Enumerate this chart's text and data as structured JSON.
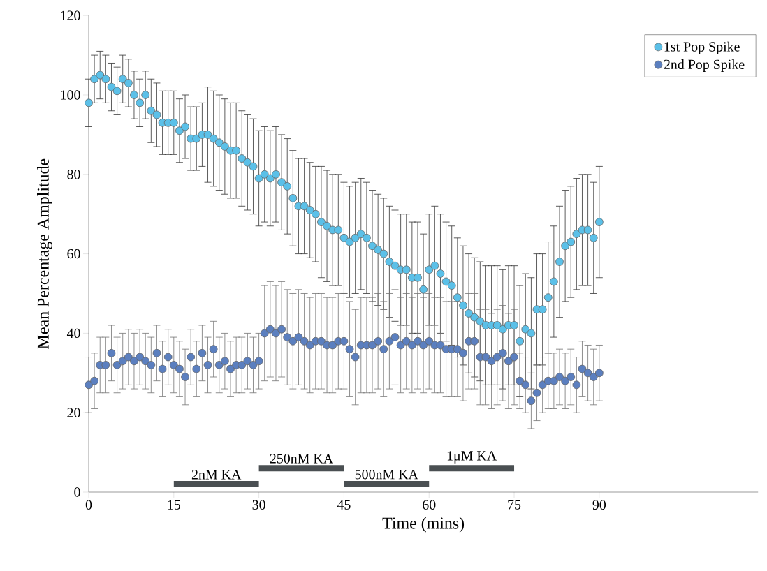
{
  "chart_data": {
    "type": "scatter",
    "xlabel": "Time (mins)",
    "ylabel": "Mean Percentage Amplitude",
    "x": [
      0,
      1,
      2,
      3,
      4,
      5,
      6,
      7,
      8,
      9,
      10,
      11,
      12,
      13,
      14,
      15,
      16,
      17,
      18,
      19,
      20,
      21,
      22,
      23,
      24,
      25,
      26,
      27,
      28,
      29,
      30,
      31,
      32,
      33,
      34,
      35,
      36,
      37,
      38,
      39,
      40,
      41,
      42,
      43,
      44,
      45,
      46,
      47,
      48,
      49,
      50,
      51,
      52,
      53,
      54,
      55,
      56,
      57,
      58,
      59,
      60,
      61,
      62,
      63,
      64,
      65,
      66,
      67,
      68,
      69,
      70,
      71,
      72,
      73,
      74,
      75,
      76,
      77,
      78,
      79,
      80,
      81,
      82,
      83,
      84,
      85,
      86,
      87,
      88,
      89,
      90
    ],
    "series": [
      {
        "name": "1st Pop Spike",
        "color": "#5bc0e8",
        "marker": "circle",
        "values": [
          98,
          104,
          105,
          104,
          102,
          101,
          104,
          103,
          100,
          98,
          100,
          96,
          95,
          93,
          93,
          93,
          91,
          92,
          89,
          89,
          90,
          90,
          89,
          88,
          87,
          86,
          86,
          84,
          83,
          82,
          79,
          80,
          79,
          80,
          78,
          77,
          74,
          72,
          72,
          71,
          70,
          68,
          67,
          66,
          66,
          64,
          63,
          64,
          65,
          64,
          62,
          61,
          60,
          58,
          57,
          56,
          56,
          54,
          54,
          51,
          56,
          57,
          55,
          53,
          52,
          49,
          47,
          45,
          44,
          43,
          42,
          42,
          42,
          41,
          42,
          42,
          38,
          41,
          40,
          46,
          46,
          49,
          53,
          58,
          62,
          63,
          65,
          66,
          66,
          64,
          68
        ],
        "errors": [
          6,
          6,
          6,
          6,
          6,
          6,
          6,
          6,
          6,
          6,
          6,
          8,
          8,
          8,
          8,
          8,
          8,
          8,
          8,
          8,
          8,
          12,
          12,
          12,
          12,
          12,
          12,
          12,
          12,
          12,
          12,
          12,
          12,
          12,
          12,
          12,
          12,
          12,
          12,
          12,
          12,
          14,
          14,
          14,
          14,
          14,
          14,
          14,
          14,
          14,
          14,
          14,
          14,
          14,
          14,
          14,
          14,
          14,
          14,
          14,
          14,
          15,
          15,
          15,
          15,
          15,
          15,
          15,
          15,
          15,
          15,
          15,
          15,
          15,
          15,
          15,
          14,
          14,
          14,
          14,
          14,
          14,
          14,
          14,
          14,
          14,
          14,
          14,
          14,
          14,
          14
        ]
      },
      {
        "name": "2nd Pop Spike",
        "color": "#5b7fbf",
        "marker": "circle",
        "values": [
          27,
          28,
          32,
          32,
          35,
          32,
          33,
          34,
          33,
          34,
          33,
          32,
          35,
          31,
          34,
          32,
          31,
          29,
          34,
          31,
          35,
          32,
          36,
          32,
          33,
          31,
          32,
          32,
          33,
          32,
          33,
          40,
          41,
          40,
          41,
          39,
          38,
          39,
          38,
          37,
          38,
          38,
          37,
          37,
          38,
          38,
          36,
          34,
          37,
          37,
          37,
          38,
          36,
          38,
          39,
          37,
          38,
          37,
          38,
          37,
          38,
          37,
          37,
          36,
          36,
          36,
          35,
          38,
          38,
          34,
          34,
          33,
          34,
          35,
          33,
          34,
          28,
          27,
          23,
          25,
          27,
          28,
          28,
          29,
          28,
          29,
          27,
          31,
          30,
          29,
          30
        ],
        "errors": [
          7,
          7,
          7,
          7,
          7,
          7,
          7,
          7,
          7,
          7,
          7,
          7,
          7,
          7,
          7,
          7,
          7,
          7,
          7,
          7,
          7,
          7,
          7,
          7,
          7,
          7,
          7,
          7,
          7,
          7,
          7,
          12,
          12,
          12,
          12,
          12,
          12,
          12,
          12,
          12,
          12,
          12,
          12,
          12,
          12,
          12,
          12,
          12,
          12,
          12,
          12,
          12,
          12,
          12,
          12,
          12,
          12,
          12,
          12,
          12,
          12,
          12,
          12,
          12,
          12,
          12,
          12,
          12,
          12,
          12,
          12,
          12,
          12,
          12,
          12,
          12,
          7,
          7,
          7,
          7,
          7,
          7,
          7,
          7,
          7,
          7,
          7,
          7,
          7,
          7,
          7
        ]
      },
      {
        "type": "line",
        "color": "#4a4f52",
        "marker": "none",
        "x": [
          15,
          30
        ],
        "values": [
          2,
          2
        ]
      },
      {
        "type": "line",
        "color": "#4a4f52",
        "marker": "none",
        "x": [
          30,
          45
        ],
        "values": [
          6,
          6
        ]
      },
      {
        "type": "line",
        "color": "#4a4f52",
        "marker": "none",
        "x": [
          45,
          60
        ],
        "values": [
          2,
          2
        ]
      },
      {
        "type": "line",
        "color": "#4a4f52",
        "marker": "none",
        "x": [
          60,
          75
        ],
        "values": [
          6,
          6
        ]
      }
    ],
    "xlim": [
      0,
      118
    ],
    "ylim": [
      0,
      120
    ],
    "xticks": [
      0,
      15,
      30,
      45,
      60,
      75,
      90
    ],
    "yticks": [
      0,
      20,
      40,
      60,
      80,
      100,
      120
    ],
    "annotations": [
      {
        "text": "2nM KA",
        "x": 22.5,
        "y": 2
      },
      {
        "text": "250nM KA",
        "x": 37.5,
        "y": 6
      },
      {
        "text": "500nM KA",
        "x": 52.5,
        "y": 2
      },
      {
        "text": "1μM KA",
        "x": 67.5,
        "y": 6
      }
    ],
    "legend": "top right",
    "grid": false
  }
}
